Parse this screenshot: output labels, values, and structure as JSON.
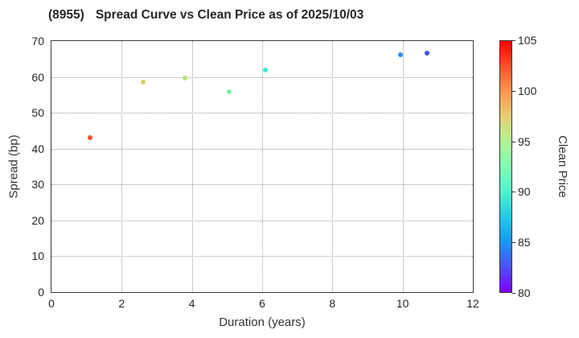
{
  "header": {
    "ticker": "(8955)",
    "title": "Spread Curve vs Clean Price as of 2025/10/03"
  },
  "colors": {
    "background": "#ffffff",
    "frame": "#3b3b3b",
    "grid": "#999999",
    "text": "#262626"
  },
  "chart_data": {
    "type": "scatter",
    "title": "(8955) Spread Curve vs Clean Price as of 2025/10/03",
    "xlabel": "Duration (years)",
    "ylabel": "Spread (bp)",
    "colorbar_label": "Clean Price",
    "xlim": [
      0,
      12
    ],
    "ylim": [
      0,
      70
    ],
    "color_range": [
      80,
      105
    ],
    "xticks": [
      0,
      2,
      4,
      6,
      8,
      10,
      12
    ],
    "yticks": [
      0,
      10,
      20,
      30,
      40,
      50,
      60,
      70
    ],
    "colorbar_ticks": [
      105,
      100,
      95,
      90,
      85,
      80
    ],
    "grid": true,
    "grid_style": "dotted",
    "colormap": "rainbow",
    "points": [
      {
        "duration": 1.1,
        "spread_bp": 43.0,
        "clean_price": 103.0,
        "color": "#f4502b"
      },
      {
        "duration": 2.6,
        "spread_bp": 58.5,
        "clean_price": 97.0,
        "color": "#dbcf63"
      },
      {
        "duration": 3.8,
        "spread_bp": 59.7,
        "clean_price": 95.5,
        "color": "#b5e573"
      },
      {
        "duration": 5.05,
        "spread_bp": 55.8,
        "clean_price": 93.0,
        "color": "#7df0a8"
      },
      {
        "duration": 6.1,
        "spread_bp": 62.0,
        "clean_price": 90.0,
        "color": "#3fe9c0"
      },
      {
        "duration": 9.95,
        "spread_bp": 66.1,
        "clean_price": 85.0,
        "color": "#2d8fee"
      },
      {
        "duration": 10.7,
        "spread_bp": 66.6,
        "clean_price": 82.5,
        "color": "#4a4ae6"
      }
    ],
    "colorbar_gradient": [
      {
        "value": 105,
        "color": "#ff0000"
      },
      {
        "value": 102.5,
        "color": "#ff4f28"
      },
      {
        "value": 100,
        "color": "#ff964f"
      },
      {
        "value": 97.5,
        "color": "#e6ce74"
      },
      {
        "value": 95,
        "color": "#b3f396"
      },
      {
        "value": 92.5,
        "color": "#80ffb4"
      },
      {
        "value": 90,
        "color": "#4df3ce"
      },
      {
        "value": 87.5,
        "color": "#1acee3"
      },
      {
        "value": 85,
        "color": "#1a96f3"
      },
      {
        "value": 82.5,
        "color": "#4d4ffc"
      },
      {
        "value": 80,
        "color": "#8000ff"
      }
    ]
  }
}
